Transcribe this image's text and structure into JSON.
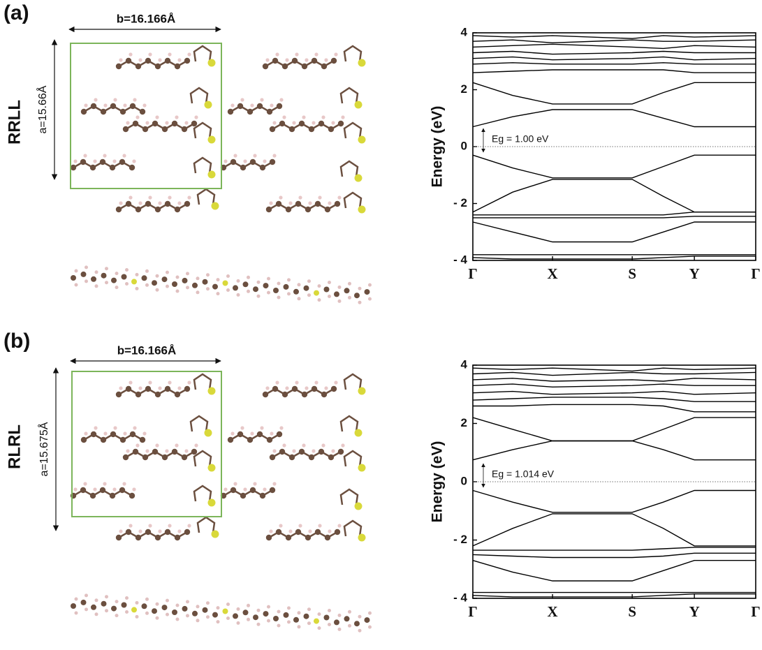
{
  "figure": {
    "panels": [
      {
        "label": "(a)",
        "name": "RRLL",
        "b_label": "b=16.166Å",
        "a_label": "a=15.66Å"
      },
      {
        "label": "(b)",
        "name": "RLRL",
        "b_label": "b=16.166Å",
        "a_label": "a=15.675Å"
      }
    ]
  },
  "chart_data": [
    {
      "type": "line",
      "ylabel": "Energy (eV)",
      "annotation": "Eg = 1.00 eV",
      "color": "#000000",
      "x": [
        0,
        0.5,
        1,
        2,
        2.39,
        2.78,
        3.55
      ],
      "xlim": [
        0,
        3.55
      ],
      "xticks": [
        {
          "value": 0,
          "label": "Γ"
        },
        {
          "value": 1,
          "label": "X"
        },
        {
          "value": 2,
          "label": "S"
        },
        {
          "value": 2.78,
          "label": "Y"
        },
        {
          "value": 3.55,
          "label": "Γ"
        }
      ],
      "ylim": [
        -4,
        4
      ],
      "yticks": [
        {
          "value": -4,
          "label": "- 4"
        },
        {
          "value": -2,
          "label": "- 2"
        },
        0,
        2,
        4
      ],
      "series": [
        {
          "values": [
            3.9,
            3.85,
            3.9,
            3.8,
            3.9,
            3.85,
            3.9
          ]
        },
        {
          "values": [
            3.7,
            3.75,
            3.65,
            3.75,
            3.7,
            3.7,
            3.75
          ]
        },
        {
          "values": [
            3.5,
            3.55,
            3.6,
            3.5,
            3.45,
            3.55,
            3.5
          ]
        },
        {
          "values": [
            3.3,
            3.35,
            3.25,
            3.3,
            3.35,
            3.3,
            3.3
          ]
        },
        {
          "values": [
            3.1,
            3.15,
            3.05,
            3.1,
            3.15,
            3.05,
            3.1
          ]
        },
        {
          "values": [
            2.9,
            2.95,
            2.9,
            2.9,
            2.95,
            2.9,
            2.9
          ]
        },
        {
          "values": [
            2.6,
            2.65,
            2.7,
            2.7,
            2.7,
            2.6,
            2.6
          ]
        },
        {
          "values": [
            2.25,
            1.8,
            1.5,
            1.5,
            1.9,
            2.25,
            2.25
          ]
        },
        {
          "values": [
            0.7,
            1.05,
            1.3,
            1.3,
            1.0,
            0.7,
            0.7
          ]
        },
        {
          "values": [
            -0.3,
            -0.75,
            -1.1,
            -1.1,
            -0.7,
            -0.3,
            -0.3
          ]
        },
        {
          "values": [
            -2.3,
            -1.6,
            -1.15,
            -1.15,
            -1.75,
            -2.3,
            -2.3
          ]
        },
        {
          "values": [
            -2.4,
            -2.4,
            -2.4,
            -2.4,
            -2.4,
            -2.3,
            -2.3
          ]
        },
        {
          "values": [
            -2.5,
            -2.5,
            -2.5,
            -2.5,
            -2.5,
            -2.45,
            -2.45
          ]
        },
        {
          "values": [
            -2.65,
            -3.0,
            -3.35,
            -3.35,
            -3.0,
            -2.65,
            -2.65
          ]
        },
        {
          "values": [
            -3.8,
            -3.8,
            -3.8,
            -3.8,
            -3.8,
            -3.8,
            -3.8
          ]
        },
        {
          "values": [
            -3.9,
            -3.95,
            -3.95,
            -3.95,
            -3.9,
            -3.85,
            -3.85
          ]
        }
      ]
    },
    {
      "type": "line",
      "ylabel": "Energy (eV)",
      "annotation": "Eg = 1.014 eV",
      "color": "#000000",
      "x": [
        0,
        0.5,
        1,
        2,
        2.39,
        2.78,
        3.55
      ],
      "xlim": [
        0,
        3.55
      ],
      "xticks": [
        {
          "value": 0,
          "label": "Γ"
        },
        {
          "value": 1,
          "label": "X"
        },
        {
          "value": 2,
          "label": "S"
        },
        {
          "value": 2.78,
          "label": "Y"
        },
        {
          "value": 3.55,
          "label": "Γ"
        }
      ],
      "ylim": [
        -4,
        4
      ],
      "yticks": [
        {
          "value": -4,
          "label": "- 4"
        },
        {
          "value": -2,
          "label": "- 2"
        },
        0,
        2,
        4
      ],
      "series": [
        {
          "values": [
            3.9,
            3.85,
            3.9,
            3.8,
            3.9,
            3.85,
            3.9
          ]
        },
        {
          "values": [
            3.7,
            3.75,
            3.65,
            3.75,
            3.7,
            3.7,
            3.75
          ]
        },
        {
          "values": [
            3.5,
            3.55,
            3.45,
            3.5,
            3.45,
            3.55,
            3.5
          ]
        },
        {
          "values": [
            3.3,
            3.35,
            3.25,
            3.3,
            3.35,
            3.3,
            3.3
          ]
        },
        {
          "values": [
            3.05,
            3.1,
            3.0,
            3.05,
            3.1,
            3.0,
            3.05
          ]
        },
        {
          "values": [
            2.8,
            2.85,
            2.9,
            2.9,
            2.85,
            2.75,
            2.75
          ]
        },
        {
          "values": [
            2.6,
            2.6,
            2.65,
            2.65,
            2.6,
            2.4,
            2.4
          ]
        },
        {
          "values": [
            2.2,
            1.8,
            1.4,
            1.4,
            1.8,
            2.2,
            2.2
          ]
        },
        {
          "values": [
            0.75,
            1.1,
            1.4,
            1.4,
            1.1,
            0.75,
            0.75
          ]
        },
        {
          "values": [
            -0.3,
            -0.7,
            -1.05,
            -1.05,
            -0.7,
            -0.3,
            -0.3
          ]
        },
        {
          "values": [
            -2.2,
            -1.6,
            -1.1,
            -1.1,
            -1.6,
            -2.2,
            -2.2
          ]
        },
        {
          "values": [
            -2.35,
            -2.35,
            -2.35,
            -2.35,
            -2.3,
            -2.25,
            -2.25
          ]
        },
        {
          "values": [
            -2.5,
            -2.55,
            -2.6,
            -2.6,
            -2.55,
            -2.45,
            -2.45
          ]
        },
        {
          "values": [
            -2.7,
            -3.1,
            -3.4,
            -3.4,
            -3.05,
            -2.7,
            -2.7
          ]
        },
        {
          "values": [
            -3.8,
            -3.8,
            -3.8,
            -3.8,
            -3.8,
            -3.8,
            -3.8
          ]
        },
        {
          "values": [
            -3.9,
            -3.95,
            -3.95,
            -3.95,
            -3.9,
            -3.85,
            -3.85
          ]
        }
      ]
    }
  ]
}
